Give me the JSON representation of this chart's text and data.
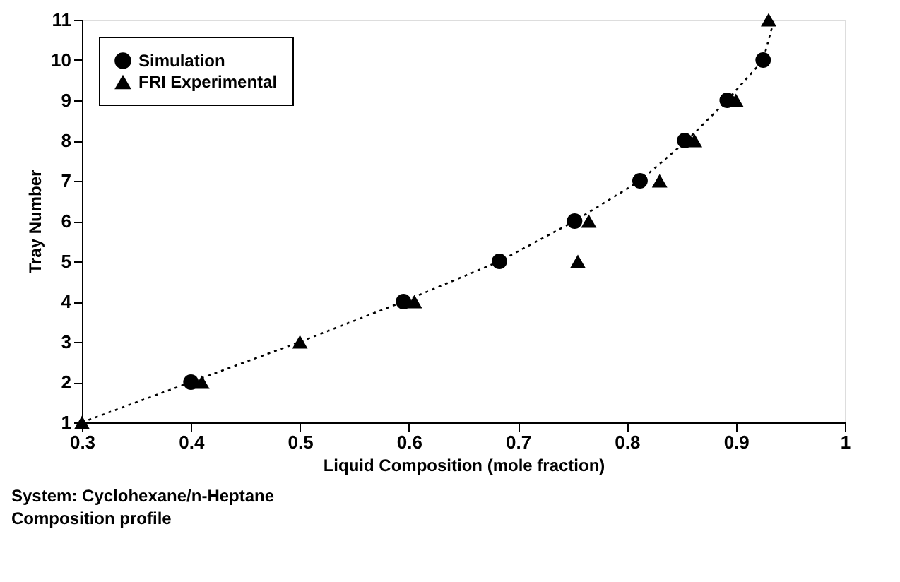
{
  "chart_data": {
    "type": "scatter",
    "xlabel": "Liquid Composition (mole fraction)",
    "ylabel": "Tray Number",
    "annotations": [
      "System: Cyclohexane/n-Heptane",
      "Composition profile"
    ],
    "series": [
      {
        "type": "line",
        "color": "#000000",
        "line_style": "dotted",
        "marker": "none",
        "x": [
          0.3,
          0.4,
          0.5,
          0.595,
          0.683,
          0.752,
          0.812,
          0.855,
          0.892,
          0.925,
          0.935
        ],
        "values": [
          1,
          2,
          3,
          4,
          5,
          6,
          7,
          8,
          9,
          10,
          11
        ]
      },
      {
        "name": "Simulation",
        "color": "#000000",
        "marker": "circle",
        "x": [
          0.4,
          0.595,
          0.683,
          0.752,
          0.812,
          0.853,
          0.892,
          0.925
        ],
        "values": [
          2,
          4,
          5,
          6,
          7,
          8,
          9,
          10
        ]
      },
      {
        "name": "FRI Experimental",
        "color": "#000000",
        "marker": "triangle",
        "x": [
          0.3,
          0.41,
          0.5,
          0.605,
          0.755,
          0.765,
          0.83,
          0.862,
          0.9,
          0.93
        ],
        "values": [
          1,
          2,
          3,
          4,
          5,
          6,
          7,
          8,
          9,
          11
        ]
      }
    ],
    "xlim": [
      0.3,
      1
    ],
    "xticks": [
      0.3,
      0.4,
      0.5,
      0.6,
      0.7,
      0.8,
      0.9,
      1
    ],
    "ylim": [
      1,
      11
    ],
    "yticks": [
      1,
      2,
      3,
      4,
      5,
      6,
      7,
      8,
      9,
      10,
      11
    ],
    "grid": false,
    "legend": "top left"
  }
}
